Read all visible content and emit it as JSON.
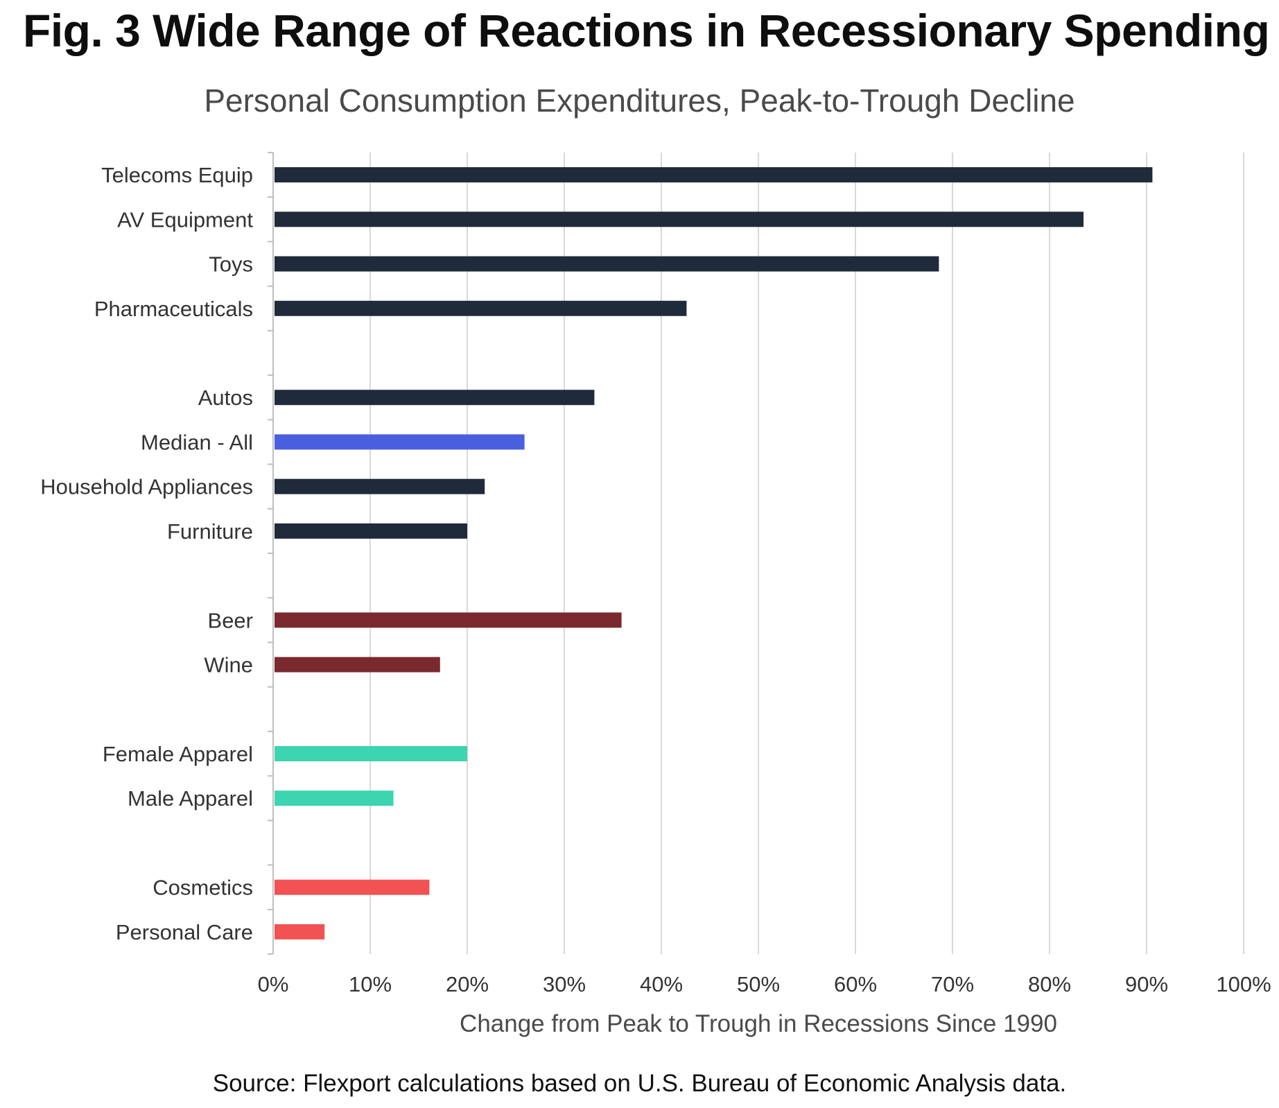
{
  "title": "Fig. 3 Wide Range of Reactions in Recessionary Spending",
  "subtitle": "Personal Consumption Expenditures, Peak-to-Trough Decline",
  "source": "Source: Flexport calculations based on U.S. Bureau of Economic Analysis data.",
  "colors": {
    "navy": "#1f2a3a",
    "blue": "#4a5fe0",
    "maroon": "#7a2a2e",
    "teal": "#3dd4b0",
    "coral": "#f25253",
    "grid": "#d9d9d9",
    "axis": "#bfbfbf"
  },
  "chart_data": {
    "type": "bar",
    "orientation": "horizontal",
    "title": "Fig. 3 Wide Range of Reactions in Recessionary Spending",
    "subtitle": "Personal Consumption Expenditures, Peak-to-Trough Decline",
    "xlabel": "Change from Peak to Trough in Recessions Since 1990",
    "ylabel": "",
    "xlim": [
      0,
      100
    ],
    "x_ticks": [
      "0%",
      "10%",
      "20%",
      "30%",
      "40%",
      "50%",
      "60%",
      "70%",
      "80%",
      "90%",
      "100%"
    ],
    "grid": true,
    "categories": [
      "Telecoms Equip",
      "AV Equipment",
      "Toys",
      "Pharmaceuticals",
      "",
      "Autos",
      "Median - All",
      "Household Appliances",
      "Furniture",
      "",
      "Beer",
      "Wine",
      "",
      "Female Apparel",
      "Male Apparel",
      "",
      "Cosmetics",
      "Personal Care"
    ],
    "values": [
      90.6,
      83.5,
      68.6,
      42.6,
      null,
      33.1,
      25.9,
      21.8,
      20.0,
      null,
      35.9,
      17.2,
      null,
      20.0,
      12.4,
      null,
      16.1,
      5.3
    ],
    "bar_colors": [
      "navy",
      "navy",
      "navy",
      "navy",
      null,
      "navy",
      "blue",
      "navy",
      "navy",
      null,
      "maroon",
      "maroon",
      null,
      "teal",
      "teal",
      null,
      "coral",
      "coral"
    ]
  }
}
